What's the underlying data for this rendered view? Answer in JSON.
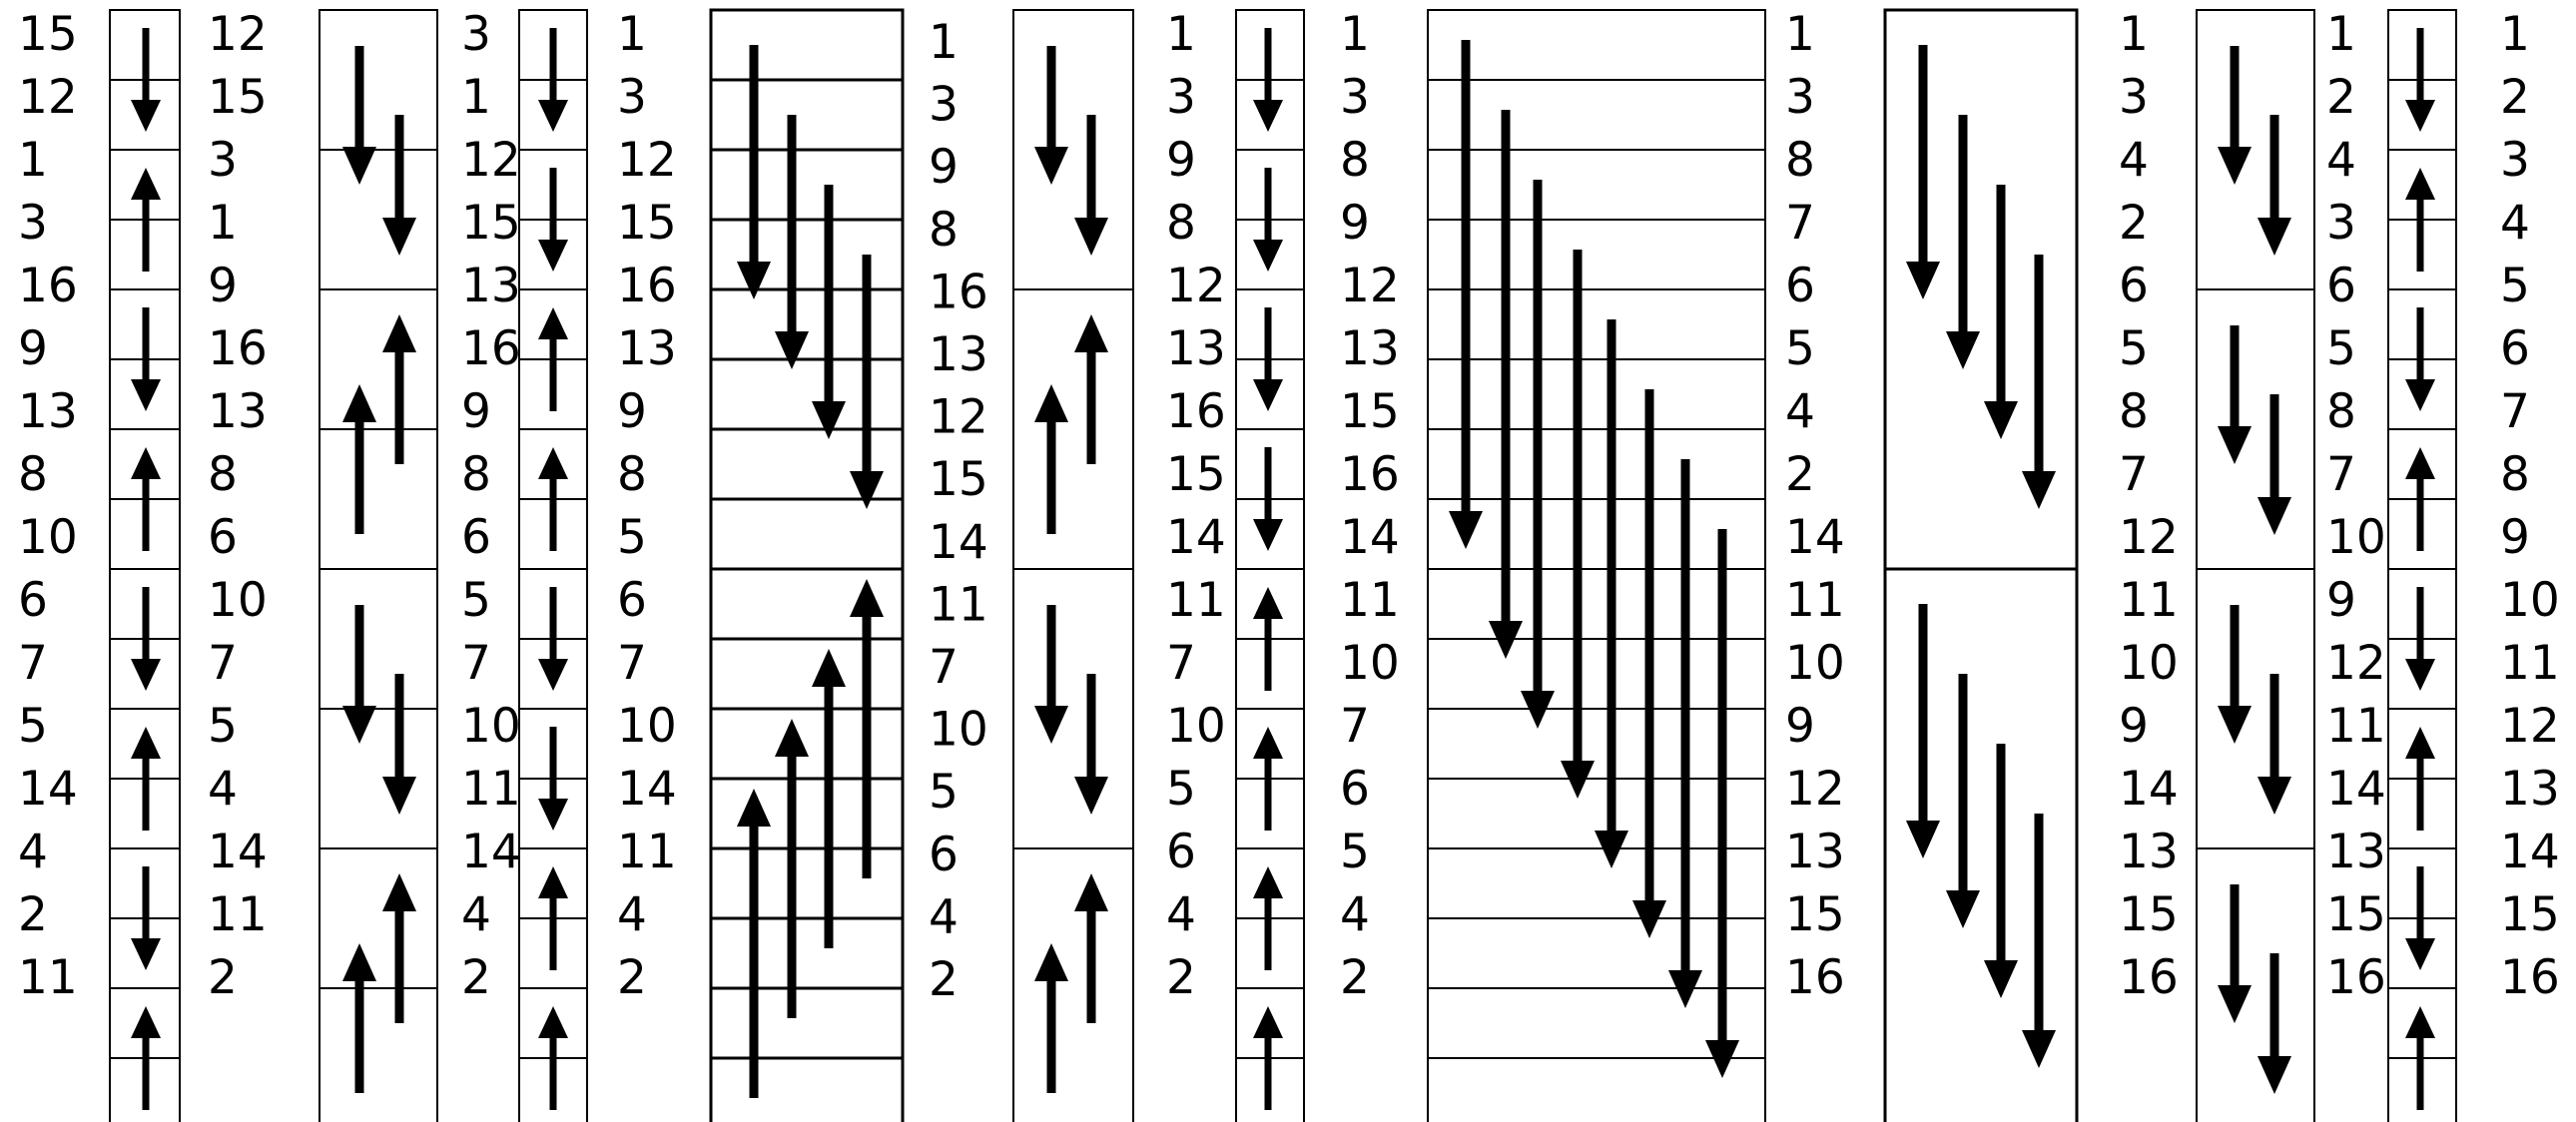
{
  "diagram": {
    "type": "bitonic-sorting-network",
    "colors": {
      "line": "#000000",
      "background": "#ffffff"
    },
    "stage_columns": [
      [
        "15",
        "12",
        "1",
        "3",
        "16",
        "9",
        "13",
        "8",
        "10",
        "6",
        "7",
        "5",
        "14",
        "4",
        "2",
        "11"
      ],
      [
        "12",
        "15",
        "3",
        "1",
        "9",
        "16",
        "13",
        "8",
        "6",
        "10",
        "7",
        "5",
        "4",
        "14",
        "11",
        "2"
      ],
      [
        "3",
        "1",
        "12",
        "15",
        "13",
        "16",
        "9",
        "8",
        "6",
        "5",
        "7",
        "10",
        "11",
        "14",
        "4",
        "2"
      ],
      [
        "1",
        "3",
        "12",
        "15",
        "16",
        "13",
        "9",
        "8",
        "5",
        "6",
        "7",
        "10",
        "14",
        "11",
        "4",
        "2"
      ],
      [
        "1",
        "3",
        "9",
        "8",
        "16",
        "13",
        "12",
        "15",
        "14",
        "11",
        "7",
        "10",
        "5",
        "6",
        "4",
        "2"
      ],
      [
        "1",
        "3",
        "9",
        "8",
        "12",
        "13",
        "16",
        "15",
        "14",
        "11",
        "7",
        "10",
        "5",
        "6",
        "4",
        "2"
      ],
      [
        "1",
        "3",
        "8",
        "9",
        "12",
        "13",
        "15",
        "16",
        "14",
        "11",
        "10",
        "7",
        "6",
        "5",
        "4",
        "2"
      ],
      [
        "1",
        "3",
        "8",
        "7",
        "6",
        "5",
        "4",
        "2",
        "14",
        "11",
        "10",
        "9",
        "12",
        "13",
        "15",
        "16"
      ],
      [
        "1",
        "3",
        "4",
        "2",
        "6",
        "5",
        "8",
        "7",
        "12",
        "11",
        "10",
        "9",
        "14",
        "13",
        "15",
        "16"
      ],
      [
        "1",
        "2",
        "4",
        "3",
        "6",
        "5",
        "8",
        "7",
        "10",
        "9",
        "12",
        "11",
        "14",
        "13",
        "15",
        "16"
      ],
      [
        "1",
        "2",
        "3",
        "4",
        "5",
        "6",
        "7",
        "8",
        "9",
        "10",
        "11",
        "12",
        "13",
        "14",
        "15",
        "16"
      ]
    ],
    "comparator_directions": [
      "down",
      "up",
      "down",
      "up",
      "down",
      "up",
      "down",
      "up"
    ]
  }
}
